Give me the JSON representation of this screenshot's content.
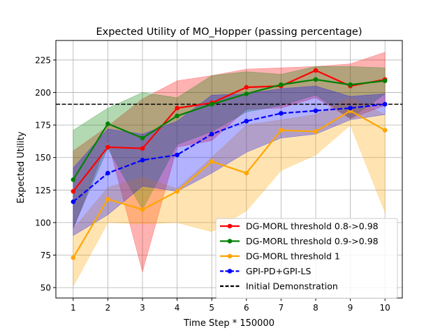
{
  "chart_data": {
    "type": "line",
    "title": "Expected Utility of MO_Hopper (passing percentage)",
    "xlabel": "Time Step * 150000",
    "ylabel": "Expected Utility",
    "x": [
      1,
      2,
      3,
      4,
      5,
      6,
      7,
      8,
      9,
      10
    ],
    "xlim": [
      0.5,
      10.5
    ],
    "ylim": [
      42,
      240
    ],
    "yticks": [
      50,
      75,
      100,
      125,
      150,
      175,
      200,
      225
    ],
    "grid": true,
    "legend_position": "lower-right",
    "series": [
      {
        "name": "DG-MORL threshold 0.8->0.98",
        "color": "#ff0000",
        "linestyle": "solid",
        "values": [
          124,
          158,
          157,
          188,
          192,
          204,
          205,
          217,
          205,
          210
        ],
        "lower": [
          95,
          163,
          62,
          158,
          163,
          187,
          188,
          196,
          180,
          190
        ],
        "upper": [
          155,
          174,
          195,
          209,
          213,
          218,
          219,
          220,
          222,
          231
        ]
      },
      {
        "name": "DG-MORL threshold 0.9->0.98",
        "color": "#008000",
        "linestyle": "solid",
        "values": [
          133,
          176,
          165,
          182,
          191,
          199,
          206,
          210,
          206,
          209
        ],
        "lower": [
          96,
          157,
          110,
          160,
          170,
          185,
          190,
          198,
          180,
          199
        ],
        "upper": [
          171,
          188,
          200,
          196,
          213,
          216,
          214,
          220,
          220,
          219
        ]
      },
      {
        "name": "DG-MORL threshold 1",
        "color": "#ffa500",
        "linestyle": "solid",
        "values": [
          73,
          118,
          110,
          124,
          147,
          138,
          171,
          170,
          186,
          171
        ],
        "lower": [
          51,
          100,
          99,
          100,
          93,
          109,
          140,
          152,
          175,
          108
        ],
        "upper": [
          95,
          127,
          135,
          126,
          150,
          175,
          179,
          183,
          196,
          183
        ]
      },
      {
        "name": "GPI-PD+GPI-LS",
        "color": "#0000ff",
        "linestyle": "dashed",
        "values": [
          116,
          138,
          148,
          152,
          168,
          178,
          184,
          186,
          188,
          191
        ],
        "lower": [
          90,
          106,
          128,
          124,
          138,
          154,
          165,
          168,
          179,
          183
        ],
        "upper": [
          142,
          172,
          168,
          178,
          198,
          199,
          203,
          205,
          197,
          199
        ]
      }
    ],
    "reference_line": {
      "name": "Initial Demonstration",
      "color": "#000000",
      "linestyle": "dashed",
      "value": 191
    }
  }
}
